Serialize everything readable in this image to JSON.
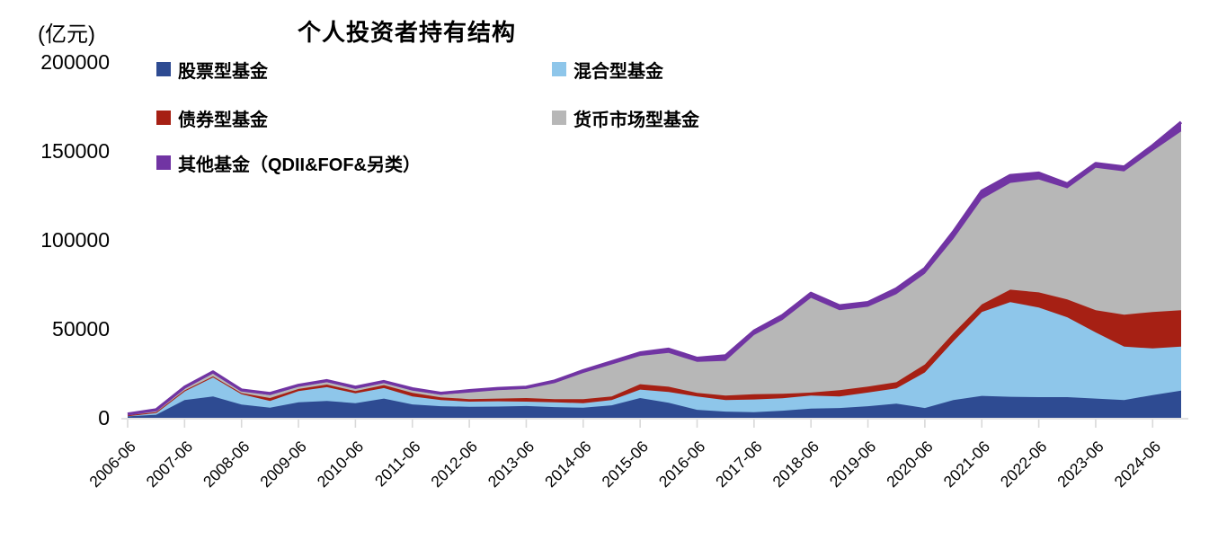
{
  "header": {
    "unit_label": "(亿元)",
    "title": "个人投资者持有结构"
  },
  "legend": {
    "items": [
      {
        "label": "股票型基金",
        "color": "#2E4B92"
      },
      {
        "label": "混合型基金",
        "color": "#8EC6EA"
      },
      {
        "label": "债券型基金",
        "color": "#A62014"
      },
      {
        "label": "货币市场型基金",
        "color": "#B7B7B7"
      },
      {
        "label": "其他基金（QDII&FOF&另类）",
        "color": "#7134A3"
      }
    ]
  },
  "chart_data": {
    "type": "area",
    "stacked": true,
    "title": "个人投资者持有结构",
    "ylabel": "(亿元)",
    "xlabel": "",
    "grid": false,
    "legend_position": "top-left",
    "ylim": [
      0,
      200000
    ],
    "yticks": [
      0,
      50000,
      100000,
      150000,
      200000
    ],
    "ytick_labels": [
      "0",
      "50000",
      "100000",
      "150000",
      "200000"
    ],
    "xtick_labels": [
      "2006-06",
      "2007-06",
      "2008-06",
      "2009-06",
      "2010-06",
      "2011-06",
      "2012-06",
      "2013-06",
      "2014-06",
      "2015-06",
      "2016-06",
      "2017-06",
      "2018-06",
      "2019-06",
      "2020-06",
      "2021-06",
      "2022-06",
      "2023-06",
      "2024-06"
    ],
    "x": [
      "2006-06",
      "2006-12",
      "2007-06",
      "2007-12",
      "2008-06",
      "2008-12",
      "2009-06",
      "2009-12",
      "2010-06",
      "2010-12",
      "2011-06",
      "2011-12",
      "2012-06",
      "2012-12",
      "2013-06",
      "2013-12",
      "2014-06",
      "2014-12",
      "2015-06",
      "2015-12",
      "2016-06",
      "2016-12",
      "2017-06",
      "2017-12",
      "2018-06",
      "2018-12",
      "2019-06",
      "2019-12",
      "2020-06",
      "2020-12",
      "2021-06",
      "2021-12",
      "2022-06",
      "2022-12",
      "2023-06",
      "2023-12",
      "2024-06",
      "2024-12"
    ],
    "series": [
      {
        "name": "股票型基金",
        "color": "#2E4B92",
        "values": [
          800,
          1700,
          10000,
          12000,
          7400,
          5700,
          8750,
          9450,
          8250,
          10800,
          7500,
          6500,
          6200,
          6300,
          6600,
          6000,
          5700,
          7000,
          11100,
          8500,
          4500,
          3500,
          3200,
          4000,
          5200,
          5500,
          6500,
          8000,
          5500,
          10000,
          12300,
          11800,
          11600,
          11600,
          10800,
          10000,
          12800,
          15300
        ]
      },
      {
        "name": "混合型基金",
        "color": "#8EC6EA",
        "values": [
          500,
          1300,
          5000,
          10800,
          5900,
          3750,
          6250,
          7750,
          5550,
          5900,
          4500,
          3500,
          2900,
          3000,
          2500,
          2700,
          2550,
          3000,
          4750,
          6000,
          7500,
          6500,
          7100,
          7000,
          7300,
          6500,
          7700,
          8500,
          20000,
          33000,
          47200,
          53200,
          50400,
          44900,
          37200,
          30000,
          26200,
          24700
        ]
      },
      {
        "name": "债券型基金",
        "color": "#A62014",
        "values": [
          100,
          200,
          400,
          500,
          600,
          1650,
          1200,
          1500,
          1200,
          1700,
          2000,
          1500,
          1400,
          1500,
          2000,
          1800,
          2250,
          2000,
          3050,
          3000,
          2000,
          2500,
          3000,
          2500,
          1700,
          3500,
          3350,
          3500,
          4500,
          4500,
          4300,
          7000,
          8500,
          10000,
          12500,
          18000,
          20500,
          20500
        ]
      },
      {
        "name": "货币市场型基金",
        "color": "#B7B7B7",
        "values": [
          600,
          1100,
          1400,
          1800,
          1200,
          1700,
          1400,
          1400,
          1200,
          1200,
          1300,
          1500,
          3700,
          4700,
          5100,
          9000,
          14700,
          18000,
          15900,
          19000,
          17400,
          19500,
          33200,
          41500,
          53200,
          45000,
          44850,
          49500,
          51000,
          53000,
          59200,
          60000,
          63500,
          62500,
          80000,
          80500,
          90500,
          100500
        ]
      },
      {
        "name": "其他基金（QDII&FOF&另类）",
        "color": "#7134A3",
        "values": [
          100,
          200,
          400,
          700,
          500,
          900,
          700,
          800,
          1000,
          800,
          1000,
          800,
          1100,
          1000,
          1000,
          1200,
          1300,
          1500,
          1700,
          2100,
          2100,
          2900,
          2300,
          2500,
          2600,
          2500,
          2400,
          3000,
          3000,
          4000,
          4500,
          4200,
          3600,
          2500,
          2500,
          2500,
          3000,
          5200
        ]
      }
    ]
  }
}
